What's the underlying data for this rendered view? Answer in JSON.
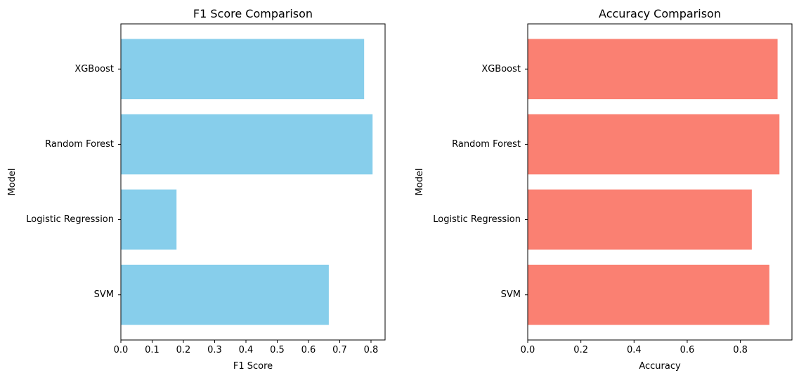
{
  "chart_data": [
    {
      "type": "bar",
      "orientation": "horizontal",
      "title": "F1 Score Comparison",
      "xlabel": "F1 Score",
      "ylabel": "Model",
      "categories": [
        "SVM",
        "Logistic Regression",
        "Random Forest",
        "XGBoost"
      ],
      "values": [
        0.665,
        0.178,
        0.805,
        0.778
      ],
      "xlim": [
        0,
        0.845
      ],
      "xticks": [
        "0.0",
        "0.1",
        "0.2",
        "0.3",
        "0.4",
        "0.5",
        "0.6",
        "0.7",
        "0.8"
      ],
      "color": "#87ceeb",
      "grid": false
    },
    {
      "type": "bar",
      "orientation": "horizontal",
      "title": "Accuracy Comparison",
      "xlabel": "Accuracy",
      "ylabel": "Model",
      "categories": [
        "SVM",
        "Logistic Regression",
        "Random Forest",
        "XGBoost"
      ],
      "values": [
        0.909,
        0.843,
        0.947,
        0.94
      ],
      "xlim": [
        0,
        0.994
      ],
      "xticks": [
        "0.0",
        "0.2",
        "0.4",
        "0.6",
        "0.8"
      ],
      "color": "#fa8072",
      "grid": false
    }
  ]
}
